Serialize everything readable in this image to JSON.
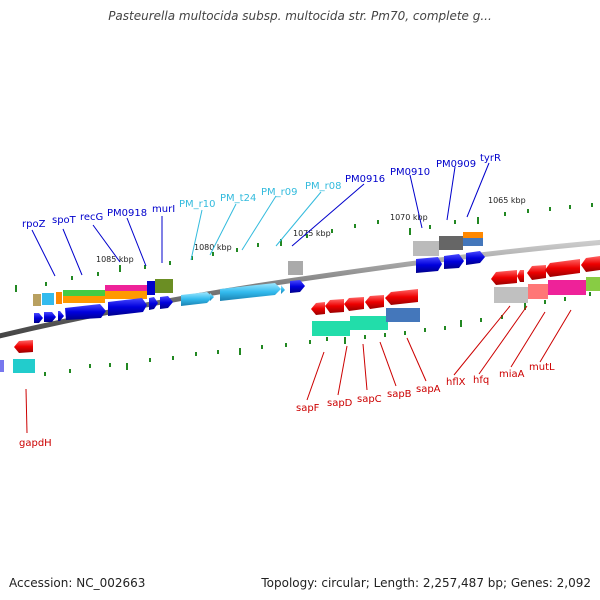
{
  "title": "Pasteurella multocida subsp. multocida str. Pm70, complete g...",
  "footer": {
    "accession": "Accession: NC_002663",
    "topology": "Topology: circular; Length: 2,257,487 bp; Genes: 2,092"
  },
  "colors": {
    "forward_genes": "#0000cc",
    "forward_rna": "#33bbdd",
    "reverse_genes": "#cc0000",
    "backbone": "#888888",
    "tick": "#228822"
  },
  "scale_labels": [
    "1085 kbp",
    "1080 kbp",
    "1075 kbp",
    "1070 kbp",
    "1065 kbp"
  ],
  "upper_labels": [
    {
      "text": "rpoZ",
      "color": "#0000cc"
    },
    {
      "text": "spoT",
      "color": "#0000cc"
    },
    {
      "text": "recG",
      "color": "#0000cc"
    },
    {
      "text": "PM0918",
      "color": "#0000cc"
    },
    {
      "text": "murI",
      "color": "#0000cc"
    },
    {
      "text": "PM_r10",
      "color": "#33bbdd"
    },
    {
      "text": "PM_t24",
      "color": "#33bbdd"
    },
    {
      "text": "PM_r09",
      "color": "#33bbdd"
    },
    {
      "text": "PM_r08",
      "color": "#33bbdd"
    },
    {
      "text": "PM0916",
      "color": "#0000cc"
    },
    {
      "text": "PM0910",
      "color": "#0000cc"
    },
    {
      "text": "PM0909",
      "color": "#0000cc"
    },
    {
      "text": "tyrR",
      "color": "#0000cc"
    }
  ],
  "lower_labels": [
    {
      "text": "gapdH",
      "color": "#cc0000"
    },
    {
      "text": "sapF",
      "color": "#cc0000"
    },
    {
      "text": "sapD",
      "color": "#cc0000"
    },
    {
      "text": "sapC",
      "color": "#cc0000"
    },
    {
      "text": "sapB",
      "color": "#cc0000"
    },
    {
      "text": "sapA",
      "color": "#cc0000"
    },
    {
      "text": "hflX",
      "color": "#cc0000"
    },
    {
      "text": "hfq",
      "color": "#cc0000"
    },
    {
      "text": "miaA",
      "color": "#cc0000"
    },
    {
      "text": "mutL",
      "color": "#cc0000"
    }
  ]
}
